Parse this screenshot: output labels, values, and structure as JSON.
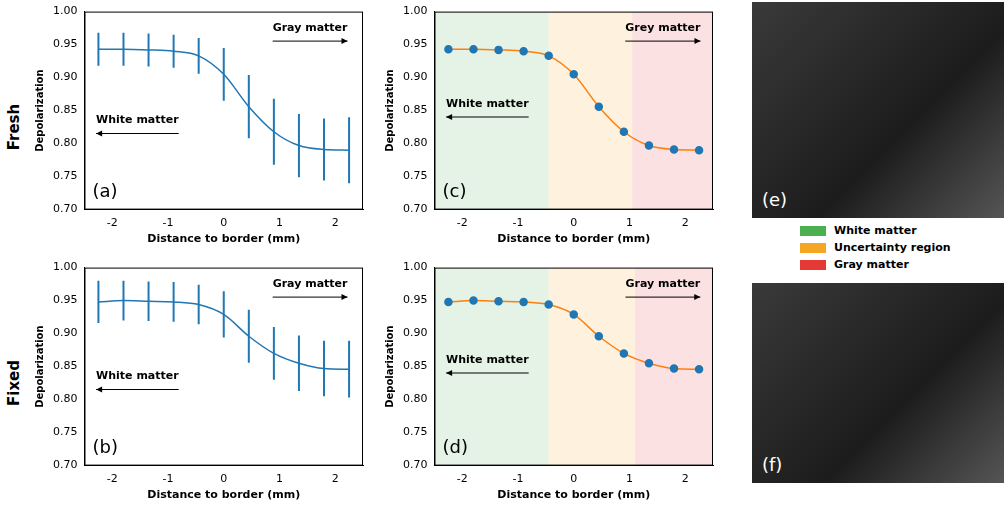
{
  "figure": {
    "row_labels": [
      "Fresh",
      "Fixed"
    ],
    "legend_items": [
      {
        "label": "White matter",
        "color": "#4caf50"
      },
      {
        "label": "Uncertainty region",
        "color": "#f5a623"
      },
      {
        "label": "Gray matter",
        "color": "#e53935"
      }
    ],
    "images": [
      {
        "panel_label": "(e)"
      },
      {
        "panel_label": "(f)"
      }
    ]
  },
  "chart_data": [
    {
      "type": "line",
      "panel_label": "(a)",
      "x_label": "Distance to border (mm)",
      "y_label": "Depolarization",
      "x": [
        -2.25,
        -1.8,
        -1.35,
        -0.9,
        -0.45,
        0,
        0.45,
        0.9,
        1.35,
        1.8,
        2.25
      ],
      "xlim": [
        -2.5,
        2.5
      ],
      "xticks": [
        -2,
        -1,
        0,
        1,
        2
      ],
      "ylim": [
        0.7,
        1.0
      ],
      "yticks": [
        {
          "value": 0.7,
          "label": "0.70"
        },
        {
          "value": 0.75,
          "label": "0.75"
        },
        {
          "value": 0.8,
          "label": "0.80"
        },
        {
          "value": 0.85,
          "label": "0.85"
        },
        {
          "value": 0.9,
          "label": "0.90"
        },
        {
          "value": 0.95,
          "label": "0.95"
        },
        {
          "value": 1.0,
          "label": "1.00"
        }
      ],
      "grid": false,
      "series": [
        {
          "type": "line",
          "color": "#1f77b4",
          "values": [
            0.943,
            0.943,
            0.942,
            0.94,
            0.933,
            0.905,
            0.856,
            0.818,
            0.797,
            0.791,
            0.79
          ],
          "errors": [
            0.025,
            0.025,
            0.025,
            0.025,
            0.027,
            0.04,
            0.048,
            0.05,
            0.048,
            0.047,
            0.05
          ]
        }
      ],
      "annotations": [
        {
          "text": "Gray matter",
          "x": 1.55,
          "y": 0.975,
          "arrow": "right"
        },
        {
          "text": "White matter",
          "x": -1.55,
          "y": 0.835,
          "arrow": "left"
        }
      ]
    },
    {
      "type": "line",
      "panel_label": "(b)",
      "x_label": "Distance to border (mm)",
      "y_label": "Depolarization",
      "x": [
        -2.25,
        -1.8,
        -1.35,
        -0.9,
        -0.45,
        0,
        0.45,
        0.9,
        1.35,
        1.8,
        2.25
      ],
      "xlim": [
        -2.5,
        2.5
      ],
      "xticks": [
        -2,
        -1,
        0,
        1,
        2
      ],
      "ylim": [
        0.7,
        1.0
      ],
      "yticks": [
        {
          "value": 0.7,
          "label": "0.70"
        },
        {
          "value": 0.75,
          "label": "0.75"
        },
        {
          "value": 0.8,
          "label": "0.80"
        },
        {
          "value": 0.85,
          "label": "0.85"
        },
        {
          "value": 0.9,
          "label": "0.90"
        },
        {
          "value": 0.95,
          "label": "0.95"
        },
        {
          "value": 1.0,
          "label": "1.00"
        }
      ],
      "grid": false,
      "series": [
        {
          "type": "line",
          "color": "#1f77b4",
          "values": [
            0.948,
            0.95,
            0.949,
            0.948,
            0.944,
            0.929,
            0.896,
            0.87,
            0.855,
            0.847,
            0.846
          ],
          "errors": [
            0.032,
            0.03,
            0.03,
            0.03,
            0.03,
            0.035,
            0.04,
            0.04,
            0.042,
            0.042,
            0.043
          ]
        }
      ],
      "annotations": [
        {
          "text": "Gray matter",
          "x": 1.55,
          "y": 0.975,
          "arrow": "right"
        },
        {
          "text": "White matter",
          "x": -1.55,
          "y": 0.835,
          "arrow": "left"
        }
      ]
    },
    {
      "type": "line",
      "panel_label": "(c)",
      "x_label": "Distance to border (mm)",
      "y_label": "Depolarization",
      "x": [
        -2.25,
        -1.8,
        -1.35,
        -0.9,
        -0.45,
        0,
        0.45,
        0.9,
        1.35,
        1.8,
        2.25
      ],
      "xlim": [
        -2.5,
        2.5
      ],
      "xticks": [
        -2,
        -1,
        0,
        1,
        2
      ],
      "ylim": [
        0.7,
        1.0
      ],
      "yticks": [
        {
          "value": 0.7,
          "label": "0.70"
        },
        {
          "value": 0.75,
          "label": "0.75"
        },
        {
          "value": 0.8,
          "label": "0.80"
        },
        {
          "value": 0.85,
          "label": "0.85"
        },
        {
          "value": 0.9,
          "label": "0.90"
        },
        {
          "value": 0.95,
          "label": "0.95"
        },
        {
          "value": 1.0,
          "label": "1.00"
        }
      ],
      "grid": false,
      "regions": [
        {
          "name": "White matter",
          "from": -2.5,
          "to": -0.45,
          "color": "#4caf50"
        },
        {
          "name": "Uncertainty region",
          "from": -0.45,
          "to": 1.05,
          "color": "#f5a623"
        },
        {
          "name": "Gray matter",
          "from": 1.05,
          "to": 2.5,
          "color": "#e53935"
        }
      ],
      "series": [
        {
          "type": "scatter",
          "color": "#1f77b4",
          "marker": "circle",
          "values": [
            0.943,
            0.943,
            0.942,
            0.94,
            0.933,
            0.905,
            0.856,
            0.818,
            0.797,
            0.791,
            0.79
          ]
        },
        {
          "type": "line",
          "color": "#ff7f0e",
          "values": [
            0.943,
            0.943,
            0.942,
            0.94,
            0.933,
            0.905,
            0.856,
            0.818,
            0.797,
            0.791,
            0.79
          ]
        }
      ],
      "annotations": [
        {
          "text": "Grey matter",
          "x": 1.6,
          "y": 0.975,
          "arrow": "right"
        },
        {
          "text": "White matter",
          "x": -1.55,
          "y": 0.86,
          "arrow": "left"
        }
      ]
    },
    {
      "type": "line",
      "panel_label": "(d)",
      "x_label": "Distance to border (mm)",
      "y_label": "Depolarization",
      "x": [
        -2.25,
        -1.8,
        -1.35,
        -0.9,
        -0.45,
        0,
        0.45,
        0.9,
        1.35,
        1.8,
        2.25
      ],
      "xlim": [
        -2.5,
        2.5
      ],
      "xticks": [
        -2,
        -1,
        0,
        1,
        2
      ],
      "ylim": [
        0.7,
        1.0
      ],
      "yticks": [
        {
          "value": 0.7,
          "label": "0.70"
        },
        {
          "value": 0.75,
          "label": "0.75"
        },
        {
          "value": 0.8,
          "label": "0.80"
        },
        {
          "value": 0.85,
          "label": "0.85"
        },
        {
          "value": 0.9,
          "label": "0.90"
        },
        {
          "value": 0.95,
          "label": "0.95"
        },
        {
          "value": 1.0,
          "label": "1.00"
        }
      ],
      "grid": false,
      "regions": [
        {
          "name": "White matter",
          "from": -2.5,
          "to": -0.45,
          "color": "#4caf50"
        },
        {
          "name": "Uncertainty region",
          "from": -0.45,
          "to": 1.1,
          "color": "#f5a623"
        },
        {
          "name": "Gray matter",
          "from": 1.1,
          "to": 2.5,
          "color": "#e53935"
        }
      ],
      "series": [
        {
          "type": "scatter",
          "color": "#1f77b4",
          "marker": "circle",
          "values": [
            0.948,
            0.95,
            0.949,
            0.948,
            0.944,
            0.929,
            0.896,
            0.87,
            0.855,
            0.847,
            0.846
          ]
        },
        {
          "type": "line",
          "color": "#ff7f0e",
          "values": [
            0.948,
            0.95,
            0.949,
            0.948,
            0.944,
            0.929,
            0.896,
            0.87,
            0.855,
            0.847,
            0.846
          ]
        }
      ],
      "annotations": [
        {
          "text": "Gray matter",
          "x": 1.6,
          "y": 0.975,
          "arrow": "right"
        },
        {
          "text": "White matter",
          "x": -1.55,
          "y": 0.86,
          "arrow": "left"
        }
      ]
    }
  ]
}
